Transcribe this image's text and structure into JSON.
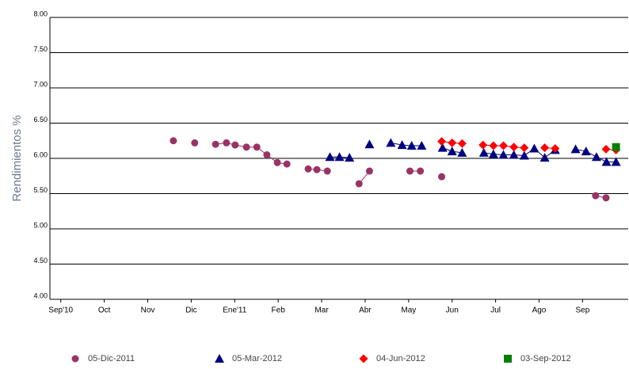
{
  "chart_data": {
    "type": "scatter",
    "ylabel": "Rendimientos %",
    "xlim": [
      -0.25,
      13.05
    ],
    "ylim": [
      4.0,
      8.0
    ],
    "xticks": [
      {
        "value": 0,
        "label": "Sep'10"
      },
      {
        "value": 1,
        "label": "Oct"
      },
      {
        "value": 2,
        "label": "Nov"
      },
      {
        "value": 3,
        "label": "Dic"
      },
      {
        "value": 4,
        "label": "Ene'11"
      },
      {
        "value": 5,
        "label": "Feb"
      },
      {
        "value": 6,
        "label": "Mar"
      },
      {
        "value": 7,
        "label": "Abr"
      },
      {
        "value": 8,
        "label": "May"
      },
      {
        "value": 9,
        "label": "Jun"
      },
      {
        "value": 10,
        "label": "Jul"
      },
      {
        "value": 11,
        "label": "Ago"
      },
      {
        "value": 12,
        "label": "Sep"
      }
    ],
    "yticks": [
      {
        "value": 4.0,
        "label": "4.00"
      },
      {
        "value": 4.5,
        "label": "4.50"
      },
      {
        "value": 5.0,
        "label": "5.00"
      },
      {
        "value": 5.5,
        "label": "5.50"
      },
      {
        "value": 6.0,
        "label": "6.00"
      },
      {
        "value": 6.5,
        "label": "6.50"
      },
      {
        "value": 7.0,
        "label": "7.00"
      },
      {
        "value": 7.5,
        "label": "7.50"
      },
      {
        "value": 8.0,
        "label": "8.00"
      }
    ],
    "grid": true,
    "legend": "bottom",
    "series": [
      {
        "name": "05-Dic-2011",
        "color": "#993366",
        "marker": "circle",
        "x": [
          2.59,
          3.08,
          3.56,
          3.81,
          4.01,
          4.27,
          4.51,
          4.74,
          4.98,
          5.2,
          5.69,
          5.89,
          6.13,
          6.86,
          7.1,
          8.03,
          8.27,
          8.76,
          12.3,
          12.54
        ],
        "values": [
          6.25,
          6.22,
          6.2,
          6.22,
          6.19,
          6.16,
          6.16,
          6.05,
          5.94,
          5.92,
          5.85,
          5.84,
          5.82,
          5.64,
          5.82,
          5.82,
          5.82,
          5.74,
          5.47,
          5.44
        ]
      },
      {
        "name": "05-Mar-2012",
        "color": "#000080",
        "marker": "triangle",
        "x": [
          6.19,
          6.41,
          6.64,
          7.1,
          7.59,
          7.85,
          8.07,
          8.3,
          8.78,
          9.0,
          9.23,
          9.73,
          9.95,
          10.18,
          10.42,
          10.66,
          10.89,
          11.13,
          11.37,
          11.84,
          12.08,
          12.32,
          12.55,
          12.77
        ],
        "values": [
          6.02,
          6.02,
          6.01,
          6.2,
          6.22,
          6.19,
          6.18,
          6.18,
          6.15,
          6.1,
          6.08,
          6.08,
          6.06,
          6.05,
          6.05,
          6.04,
          6.14,
          6.01,
          6.12,
          6.13,
          6.1,
          6.02,
          5.95,
          5.95
        ]
      },
      {
        "name": "04-Jun-2012",
        "color": "#ff0000",
        "marker": "diamond",
        "x": [
          8.76,
          9.0,
          9.23,
          9.71,
          9.95,
          10.18,
          10.42,
          10.66,
          11.13,
          11.37,
          12.54,
          12.77
        ],
        "values": [
          6.24,
          6.22,
          6.21,
          6.19,
          6.18,
          6.18,
          6.16,
          6.15,
          6.15,
          6.14,
          6.13,
          6.12
        ]
      },
      {
        "name": "03-Sep-2012",
        "color": "#008000",
        "marker": "square",
        "x": [
          12.77
        ],
        "values": [
          6.16
        ]
      }
    ]
  }
}
